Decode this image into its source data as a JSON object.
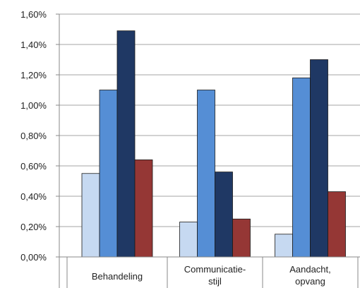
{
  "chart_data": {
    "type": "bar",
    "categories": [
      "Behandeling",
      "Communicatie-stijl",
      "Aandacht, opvang"
    ],
    "category_label_lines": [
      [
        "Behandeling"
      ],
      [
        "Communicatie-",
        "stijl"
      ],
      [
        "Aandacht,",
        "opvang"
      ]
    ],
    "series": [
      {
        "values": [
          0.55,
          0.23,
          0.15
        ],
        "color": "#c6d9f1"
      },
      {
        "values": [
          1.1,
          1.1,
          1.18
        ],
        "color": "#558ed5"
      },
      {
        "values": [
          1.49,
          0.56,
          1.3
        ],
        "color": "#1f3864"
      },
      {
        "values": [
          0.64,
          0.25,
          0.43
        ],
        "color": "#953735"
      }
    ],
    "ylim": [
      0,
      1.6
    ],
    "yticks": [
      0,
      0.2,
      0.4,
      0.6,
      0.8,
      1.0,
      1.2,
      1.4,
      1.6
    ],
    "ytick_labels": [
      "0,00%",
      "0,20%",
      "0,40%",
      "0,60%",
      "0,80%",
      "1,00%",
      "1,20%",
      "1,40%",
      "1,60%"
    ],
    "grid": true,
    "legend": false
  }
}
